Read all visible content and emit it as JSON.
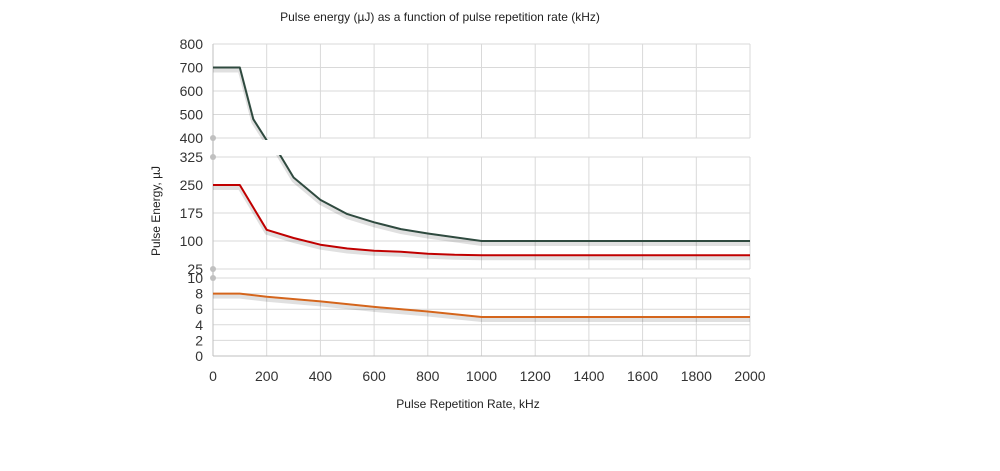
{
  "chart_data": {
    "type": "line",
    "title": "Pulse energy (µJ) as a function of pulse repetition rate (kHz)",
    "xlabel": "Pulse Repetition Rate, kHz",
    "ylabel": "Pulse Energy, µJ",
    "xlim": [
      0,
      2000
    ],
    "x_ticks": [
      0,
      200,
      400,
      600,
      800,
      1000,
      1200,
      1400,
      1600,
      1800,
      2000
    ],
    "grid": true,
    "legend": "none",
    "broken_y_axis": true,
    "y_panels": [
      {
        "range": [
          400,
          800
        ],
        "ticks": [
          400,
          500,
          600,
          700,
          800
        ]
      },
      {
        "range": [
          25,
          325
        ],
        "ticks": [
          25,
          100,
          175,
          250,
          325
        ]
      },
      {
        "range": [
          0,
          10
        ],
        "ticks": [
          0,
          2,
          4,
          6,
          8,
          10
        ]
      }
    ],
    "series": [
      {
        "color": "#2f4a3f",
        "points": [
          [
            0,
            700
          ],
          [
            100,
            700
          ],
          [
            150,
            480
          ],
          [
            200,
            390
          ],
          [
            250,
            330
          ],
          [
            300,
            270
          ],
          [
            400,
            210
          ],
          [
            500,
            172
          ],
          [
            600,
            150
          ],
          [
            700,
            132
          ],
          [
            800,
            120
          ],
          [
            900,
            110
          ],
          [
            1000,
            100
          ],
          [
            1200,
            100
          ],
          [
            1400,
            100
          ],
          [
            1600,
            100
          ],
          [
            1800,
            100
          ],
          [
            2000,
            100
          ]
        ]
      },
      {
        "color": "#c00000",
        "points": [
          [
            0,
            250
          ],
          [
            100,
            250
          ],
          [
            200,
            130
          ],
          [
            300,
            108
          ],
          [
            400,
            90
          ],
          [
            500,
            80
          ],
          [
            600,
            74
          ],
          [
            700,
            71
          ],
          [
            800,
            66
          ],
          [
            900,
            63
          ],
          [
            1000,
            62
          ],
          [
            1200,
            62
          ],
          [
            1400,
            62
          ],
          [
            1600,
            62
          ],
          [
            1800,
            62
          ],
          [
            2000,
            62
          ]
        ]
      },
      {
        "color": "#d4651c",
        "points": [
          [
            0,
            8
          ],
          [
            100,
            8
          ],
          [
            200,
            7.6
          ],
          [
            400,
            7
          ],
          [
            600,
            6.3
          ],
          [
            800,
            5.7
          ],
          [
            1000,
            5
          ],
          [
            1200,
            5
          ],
          [
            1400,
            5
          ],
          [
            1600,
            5
          ],
          [
            1800,
            5
          ],
          [
            2000,
            5
          ]
        ]
      }
    ]
  }
}
